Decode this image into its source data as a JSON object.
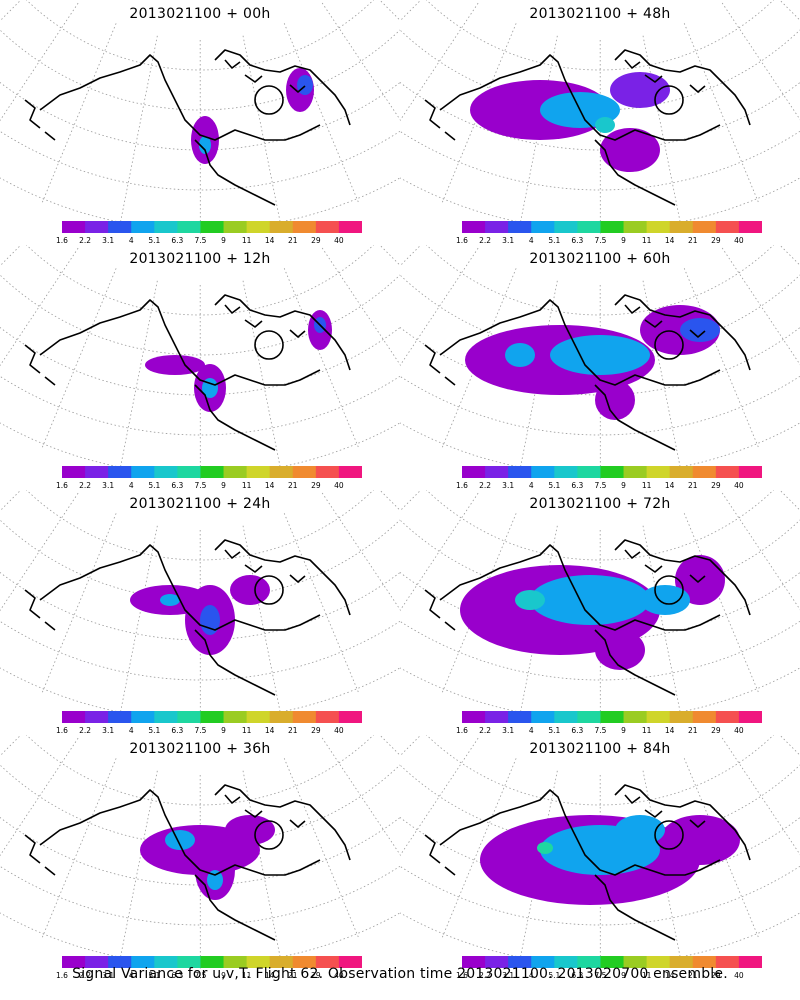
{
  "caption": "Signal Variance for u,v,T. Flight 62. Observation time 2013021100. 2013020700 ensemble.",
  "colorbar": {
    "labels": [
      "1.6",
      "2.2",
      "3.1",
      "4",
      "5.1",
      "6.3",
      "7.5",
      "9",
      "11",
      "14",
      "21",
      "29",
      "40"
    ],
    "colors": [
      "#9900cc",
      "#7a22e6",
      "#2a55ee",
      "#10a4ee",
      "#19c7cc",
      "#1ed7a0",
      "#22cc22",
      "#9acc22",
      "#cfd52a",
      "#d9ad2c",
      "#f08a30",
      "#f55050",
      "#f0167f"
    ]
  },
  "panels": [
    {
      "title": "2013021100 + 00h"
    },
    {
      "title": "2013021100 + 48h"
    },
    {
      "title": "2013021100 + 12h"
    },
    {
      "title": "2013021100 + 60h"
    },
    {
      "title": "2013021100 + 24h"
    },
    {
      "title": "2013021100 + 72h"
    },
    {
      "title": "2013021100 + 36h"
    },
    {
      "title": "2013021100 + 84h"
    }
  ]
}
